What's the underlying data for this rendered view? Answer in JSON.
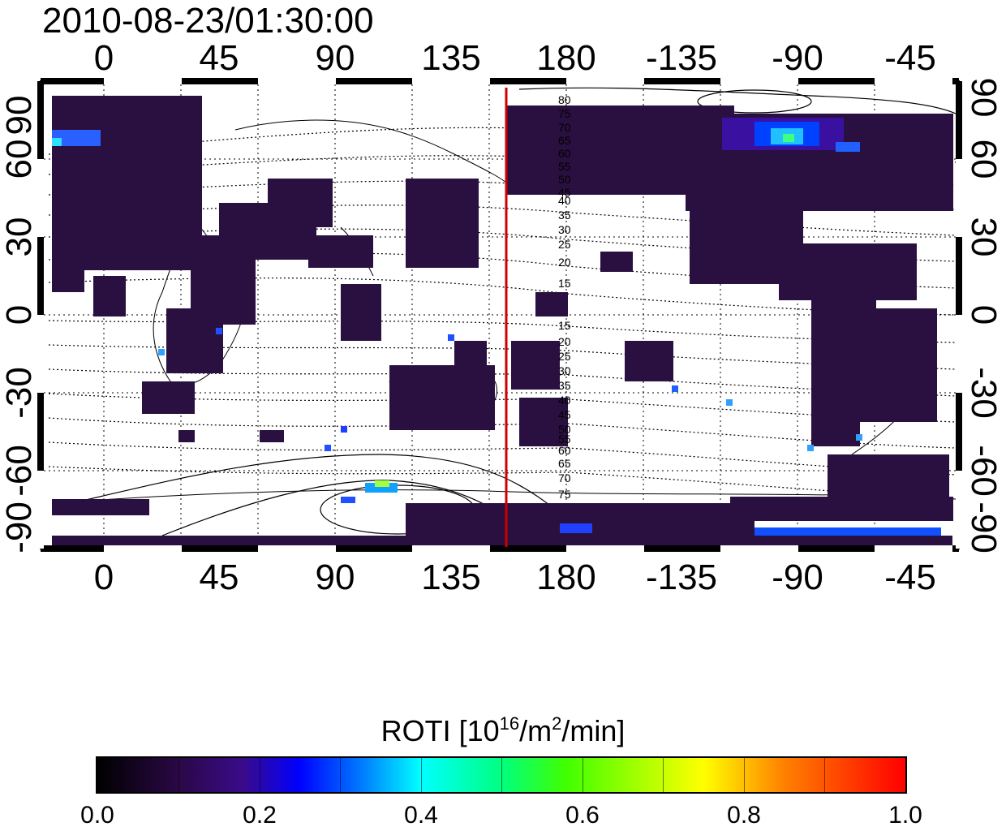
{
  "timestamp": "2010-08-23/01:30:00",
  "map": {
    "x_ticks": [
      "0",
      "45",
      "90",
      "135",
      "180",
      "-135",
      "-90",
      "-45"
    ],
    "y_ticks_left": [
      "90",
      "60",
      "30",
      "0",
      "-30",
      "-60",
      "-90"
    ],
    "y_ticks_right": [
      "90",
      "60",
      "30",
      "0",
      "-30",
      "-60",
      "-90"
    ],
    "contour_labels_north": [
      "80",
      "75",
      "70",
      "65",
      "60",
      "55",
      "50",
      "45",
      "40",
      "35",
      "30",
      "25",
      "20",
      "15"
    ],
    "contour_labels_south": [
      "15",
      "20",
      "25",
      "30",
      "35",
      "40",
      "45",
      "50",
      "55",
      "60",
      "65",
      "70",
      "75"
    ],
    "meridian_line_color": "#cc0000",
    "meridian_line_longitude": 157,
    "data_color_dominant": "#2a1040"
  },
  "colorbar": {
    "title_main": "ROTI  [10",
    "title_sup1": "16",
    "title_mid": "/m",
    "title_sup2": "2",
    "title_end": "/min]",
    "ticks": [
      "0.0",
      "0.2",
      "0.4",
      "0.6",
      "0.8",
      "1.0"
    ],
    "range": [
      0.0,
      1.0
    ]
  }
}
